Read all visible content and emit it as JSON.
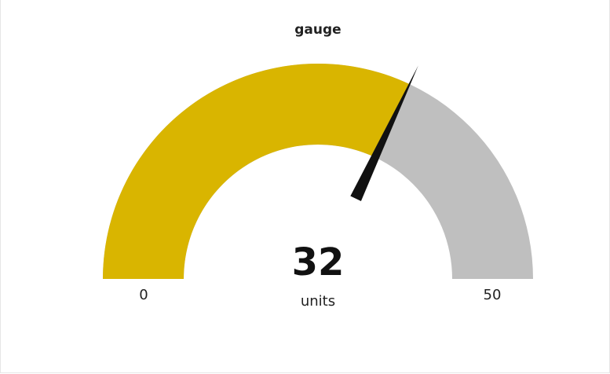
{
  "chart_data": {
    "type": "gauge",
    "title": "gauge",
    "value": 32,
    "value_label": "32",
    "units": "units",
    "min": 0,
    "max": 50,
    "min_label": "0",
    "max_label": "50",
    "colors": {
      "fill": "#d9b500",
      "track": "#bfbfbf",
      "needle": "#111111"
    }
  }
}
